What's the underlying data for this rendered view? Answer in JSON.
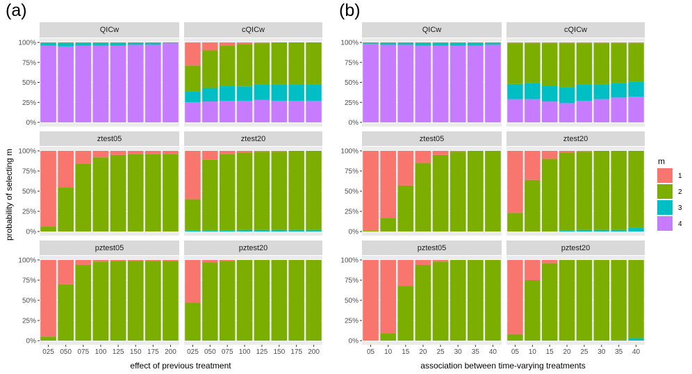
{
  "figure": {
    "label_a": "(a)",
    "label_b": "(b)",
    "ylabel": "probability of selecting m",
    "legend": {
      "title": "m",
      "items": [
        {
          "label": "1",
          "color": "#F8766D"
        },
        {
          "label": "2",
          "color": "#7CAE00"
        },
        {
          "label": "3",
          "color": "#00BFC4"
        },
        {
          "label": "4",
          "color": "#C77CFF"
        }
      ]
    },
    "y_ticks": [
      "0%",
      "25%",
      "50%",
      "75%",
      "100%"
    ]
  },
  "chart_data": [
    {
      "type": "bar",
      "group": "a",
      "stacked": true,
      "xlabel": "effect of previous treatment",
      "categories": [
        "025",
        "050",
        "075",
        "100",
        "125",
        "150",
        "175",
        "200"
      ],
      "ylim": [
        0,
        1
      ],
      "facets": [
        {
          "title": "QICw",
          "series": [
            {
              "name": "1",
              "values": [
                0.0,
                0.0,
                0.0,
                0.0,
                0.0,
                0.0,
                0.0,
                0.0
              ]
            },
            {
              "name": "2",
              "values": [
                0.01,
                0.01,
                0.01,
                0.01,
                0.01,
                0.01,
                0.01,
                0.0
              ]
            },
            {
              "name": "3",
              "values": [
                0.03,
                0.04,
                0.03,
                0.03,
                0.03,
                0.02,
                0.02,
                0.01
              ]
            },
            {
              "name": "4",
              "values": [
                0.96,
                0.95,
                0.96,
                0.96,
                0.96,
                0.97,
                0.97,
                0.99
              ]
            }
          ]
        },
        {
          "title": "cQICw",
          "series": [
            {
              "name": "1",
              "values": [
                0.29,
                0.1,
                0.04,
                0.02,
                0.01,
                0.0,
                0.0,
                0.0
              ]
            },
            {
              "name": "2",
              "values": [
                0.32,
                0.47,
                0.5,
                0.53,
                0.52,
                0.53,
                0.53,
                0.53
              ]
            },
            {
              "name": "3",
              "values": [
                0.14,
                0.17,
                0.19,
                0.18,
                0.19,
                0.2,
                0.2,
                0.2
              ]
            },
            {
              "name": "4",
              "values": [
                0.25,
                0.26,
                0.27,
                0.27,
                0.28,
                0.27,
                0.27,
                0.27
              ]
            }
          ]
        },
        {
          "title": "ztest05",
          "series": [
            {
              "name": "1",
              "values": [
                0.94,
                0.45,
                0.16,
                0.08,
                0.05,
                0.04,
                0.04,
                0.04
              ]
            },
            {
              "name": "2",
              "values": [
                0.06,
                0.55,
                0.84,
                0.92,
                0.95,
                0.96,
                0.96,
                0.96
              ]
            },
            {
              "name": "3",
              "values": [
                0.0,
                0.0,
                0.0,
                0.0,
                0.0,
                0.0,
                0.0,
                0.0
              ]
            },
            {
              "name": "4",
              "values": [
                0.0,
                0.0,
                0.0,
                0.0,
                0.0,
                0.0,
                0.0,
                0.0
              ]
            }
          ]
        },
        {
          "title": "ztest20",
          "series": [
            {
              "name": "1",
              "values": [
                0.6,
                0.11,
                0.04,
                0.02,
                0.01,
                0.01,
                0.0,
                0.0
              ]
            },
            {
              "name": "2",
              "values": [
                0.39,
                0.88,
                0.95,
                0.96,
                0.97,
                0.97,
                0.98,
                0.98
              ]
            },
            {
              "name": "3",
              "values": [
                0.01,
                0.01,
                0.01,
                0.02,
                0.02,
                0.02,
                0.02,
                0.02
              ]
            },
            {
              "name": "4",
              "values": [
                0.0,
                0.0,
                0.0,
                0.0,
                0.0,
                0.0,
                0.0,
                0.0
              ]
            }
          ]
        },
        {
          "title": "pztest05",
          "series": [
            {
              "name": "1",
              "values": [
                0.95,
                0.3,
                0.06,
                0.02,
                0.01,
                0.01,
                0.01,
                0.01
              ]
            },
            {
              "name": "2",
              "values": [
                0.05,
                0.7,
                0.94,
                0.98,
                0.99,
                0.99,
                0.99,
                0.99
              ]
            },
            {
              "name": "3",
              "values": [
                0.0,
                0.0,
                0.0,
                0.0,
                0.0,
                0.0,
                0.0,
                0.0
              ]
            },
            {
              "name": "4",
              "values": [
                0.0,
                0.0,
                0.0,
                0.0,
                0.0,
                0.0,
                0.0,
                0.0
              ]
            }
          ]
        },
        {
          "title": "pztest20",
          "series": [
            {
              "name": "1",
              "values": [
                0.53,
                0.03,
                0.01,
                0.0,
                0.0,
                0.0,
                0.0,
                0.0
              ]
            },
            {
              "name": "2",
              "values": [
                0.47,
                0.97,
                0.99,
                1.0,
                1.0,
                1.0,
                1.0,
                1.0
              ]
            },
            {
              "name": "3",
              "values": [
                0.0,
                0.0,
                0.0,
                0.0,
                0.0,
                0.0,
                0.0,
                0.0
              ]
            },
            {
              "name": "4",
              "values": [
                0.0,
                0.0,
                0.0,
                0.0,
                0.0,
                0.0,
                0.0,
                0.0
              ]
            }
          ]
        }
      ]
    },
    {
      "type": "bar",
      "group": "b",
      "stacked": true,
      "xlabel": "association between time-varying treatments",
      "categories": [
        "05",
        "10",
        "15",
        "20",
        "25",
        "30",
        "35",
        "40"
      ],
      "ylim": [
        0,
        1
      ],
      "facets": [
        {
          "title": "QICw",
          "series": [
            {
              "name": "1",
              "values": [
                0.0,
                0.0,
                0.0,
                0.0,
                0.0,
                0.0,
                0.0,
                0.0
              ]
            },
            {
              "name": "2",
              "values": [
                0.01,
                0.01,
                0.01,
                0.01,
                0.01,
                0.01,
                0.01,
                0.01
              ]
            },
            {
              "name": "3",
              "values": [
                0.01,
                0.02,
                0.02,
                0.03,
                0.03,
                0.03,
                0.03,
                0.02
              ]
            },
            {
              "name": "4",
              "values": [
                0.98,
                0.97,
                0.97,
                0.96,
                0.96,
                0.96,
                0.96,
                0.97
              ]
            }
          ]
        },
        {
          "title": "cQICw",
          "series": [
            {
              "name": "1",
              "values": [
                0.01,
                0.01,
                0.01,
                0.01,
                0.01,
                0.01,
                0.01,
                0.01
              ]
            },
            {
              "name": "2",
              "values": [
                0.51,
                0.5,
                0.53,
                0.55,
                0.52,
                0.52,
                0.5,
                0.48
              ]
            },
            {
              "name": "3",
              "values": [
                0.19,
                0.2,
                0.2,
                0.2,
                0.2,
                0.18,
                0.18,
                0.19
              ]
            },
            {
              "name": "4",
              "values": [
                0.29,
                0.29,
                0.26,
                0.24,
                0.27,
                0.29,
                0.31,
                0.32
              ]
            }
          ]
        },
        {
          "title": "ztest05",
          "series": [
            {
              "name": "1",
              "values": [
                0.99,
                0.83,
                0.43,
                0.15,
                0.05,
                0.01,
                0.0,
                0.0
              ]
            },
            {
              "name": "2",
              "values": [
                0.01,
                0.17,
                0.57,
                0.85,
                0.95,
                0.99,
                1.0,
                1.0
              ]
            },
            {
              "name": "3",
              "values": [
                0.0,
                0.0,
                0.0,
                0.0,
                0.0,
                0.0,
                0.0,
                0.0
              ]
            },
            {
              "name": "4",
              "values": [
                0.0,
                0.0,
                0.0,
                0.0,
                0.0,
                0.0,
                0.0,
                0.0
              ]
            }
          ]
        },
        {
          "title": "ztest20",
          "series": [
            {
              "name": "1",
              "values": [
                0.77,
                0.36,
                0.1,
                0.02,
                0.01,
                0.0,
                0.0,
                0.0
              ]
            },
            {
              "name": "2",
              "values": [
                0.23,
                0.64,
                0.9,
                0.97,
                0.97,
                0.98,
                0.98,
                0.95
              ]
            },
            {
              "name": "3",
              "values": [
                0.0,
                0.0,
                0.0,
                0.01,
                0.02,
                0.02,
                0.02,
                0.05
              ]
            },
            {
              "name": "4",
              "values": [
                0.0,
                0.0,
                0.0,
                0.0,
                0.0,
                0.0,
                0.0,
                0.0
              ]
            }
          ]
        },
        {
          "title": "pztest05",
          "series": [
            {
              "name": "1",
              "values": [
                1.0,
                0.91,
                0.32,
                0.06,
                0.02,
                0.0,
                0.0,
                0.0
              ]
            },
            {
              "name": "2",
              "values": [
                0.0,
                0.09,
                0.68,
                0.94,
                0.98,
                1.0,
                1.0,
                1.0
              ]
            },
            {
              "name": "3",
              "values": [
                0.0,
                0.0,
                0.0,
                0.0,
                0.0,
                0.0,
                0.0,
                0.0
              ]
            },
            {
              "name": "4",
              "values": [
                0.0,
                0.0,
                0.0,
                0.0,
                0.0,
                0.0,
                0.0,
                0.0
              ]
            }
          ]
        },
        {
          "title": "pztest20",
          "series": [
            {
              "name": "1",
              "values": [
                0.92,
                0.25,
                0.04,
                0.0,
                0.0,
                0.0,
                0.0,
                0.0
              ]
            },
            {
              "name": "2",
              "values": [
                0.08,
                0.75,
                0.96,
                1.0,
                1.0,
                1.0,
                0.99,
                0.97
              ]
            },
            {
              "name": "3",
              "values": [
                0.0,
                0.0,
                0.0,
                0.0,
                0.0,
                0.0,
                0.01,
                0.03
              ]
            },
            {
              "name": "4",
              "values": [
                0.0,
                0.0,
                0.0,
                0.0,
                0.0,
                0.0,
                0.0,
                0.0
              ]
            }
          ]
        }
      ]
    }
  ]
}
